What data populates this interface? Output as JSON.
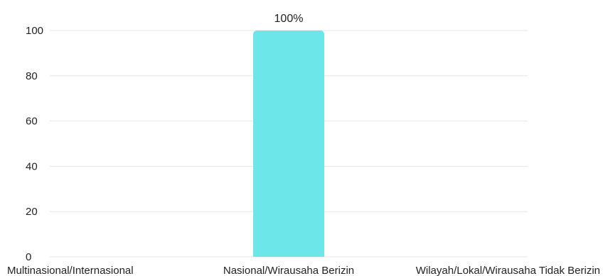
{
  "chart_data": {
    "type": "bar",
    "categories": [
      "Multinasional/Internasional",
      "Nasional/Wirausaha Berizin",
      "Wilayah/Lokal/Wirausaha Tidak Berizin"
    ],
    "values": [
      0,
      100,
      0
    ],
    "data_labels": [
      "",
      "100%",
      ""
    ],
    "ylim": [
      0,
      100
    ],
    "yticks": [
      0,
      20,
      40,
      60,
      80,
      100
    ],
    "grid": true,
    "bar_color": "#6de6ea"
  }
}
